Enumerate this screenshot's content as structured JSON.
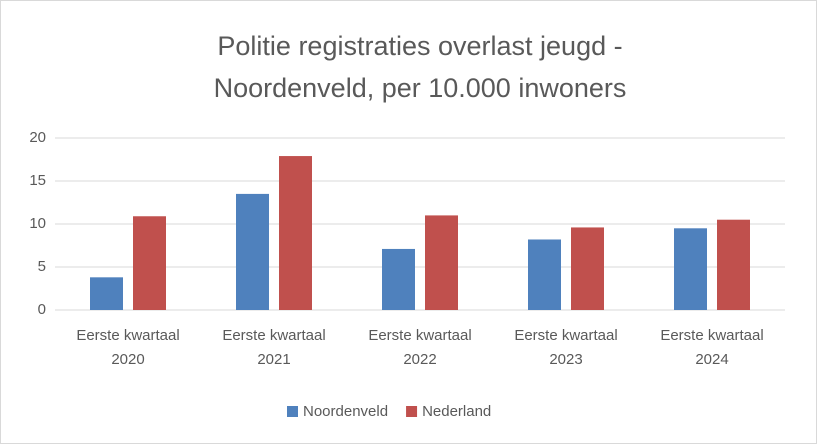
{
  "chart_data": {
    "type": "bar",
    "title": [
      "Politie registraties overlast jeugd -",
      "Noordenveld, per 10.000 inwoners"
    ],
    "categories": [
      "Eerste kwartaal 2020",
      "Eerste kwartaal 2021",
      "Eerste kwartaal 2022",
      "Eerste kwartaal 2023",
      "Eerste kwartaal 2024"
    ],
    "series": [
      {
        "name": "Noordenveld",
        "color": "#4f81bd",
        "values": [
          3.8,
          13.5,
          7.1,
          8.2,
          9.5
        ]
      },
      {
        "name": "Nederland",
        "color": "#c0504d",
        "values": [
          10.9,
          17.9,
          11.0,
          9.6,
          10.5
        ]
      }
    ],
    "ylim": [
      0,
      20
    ],
    "yticks": [
      0,
      5,
      10,
      15,
      20
    ],
    "grid": true,
    "legend": "bottom"
  }
}
